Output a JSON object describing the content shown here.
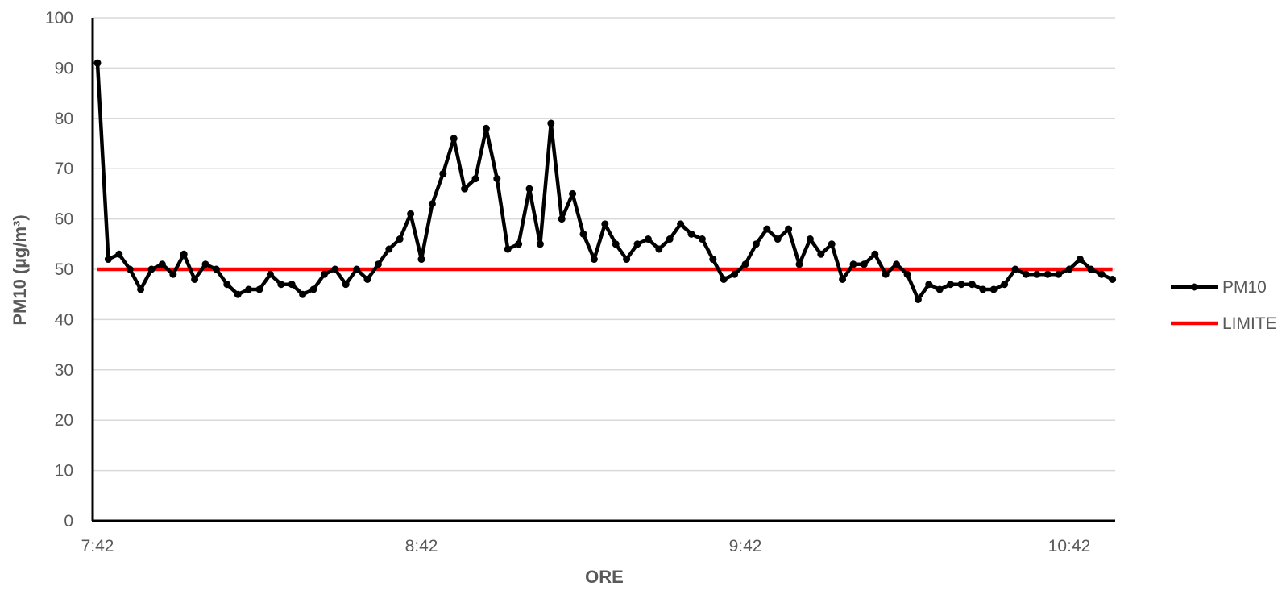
{
  "chart_data": {
    "type": "line",
    "xlabel": "ORE",
    "ylabel": "PM10 (µg/m³)",
    "ylim": [
      0,
      100
    ],
    "yticks": [
      0,
      10,
      20,
      30,
      40,
      50,
      60,
      70,
      80,
      90,
      100
    ],
    "x_tick_labels": [
      "7:42",
      "8:42",
      "9:42",
      "10:42"
    ],
    "x_interval_minutes": 2,
    "grid": "horizontal",
    "legend_position": "right",
    "series": [
      {
        "name": "PM10",
        "color": "#000000",
        "marker": "circle",
        "values": [
          91,
          52,
          53,
          50,
          46,
          50,
          51,
          49,
          53,
          48,
          51,
          50,
          47,
          45,
          46,
          46,
          49,
          47,
          47,
          45,
          46,
          49,
          50,
          47,
          50,
          48,
          51,
          54,
          56,
          61,
          52,
          63,
          69,
          76,
          66,
          68,
          78,
          68,
          54,
          55,
          66,
          55,
          79,
          60,
          65,
          57,
          52,
          59,
          55,
          52,
          55,
          56,
          54,
          56,
          59,
          57,
          56,
          52,
          48,
          49,
          51,
          55,
          58,
          56,
          58,
          51,
          56,
          53,
          55,
          48,
          51,
          51,
          53,
          49,
          51,
          49,
          44,
          47,
          46,
          47,
          47,
          47,
          46,
          46,
          47,
          50,
          49,
          49,
          49,
          49,
          50,
          52,
          50,
          49,
          48
        ]
      },
      {
        "name": "LIMITE",
        "color": "#ff0000",
        "marker": "none",
        "constant": 50
      }
    ]
  }
}
